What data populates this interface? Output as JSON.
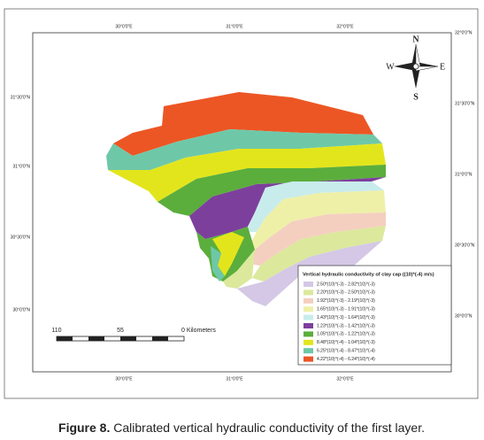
{
  "map": {
    "top_labels": [
      "30°0'0\"E",
      "31°0'0\"E",
      "32°0'0\"E"
    ],
    "bottom_labels": [
      "30°0'0\"E",
      "31°0'0\"E",
      "32°0'0\"E"
    ],
    "left_labels": [
      "31°30'0\"N",
      "31°0'0\"N",
      "30°30'0\"N",
      "30°0'0\"N"
    ],
    "right_labels": [
      "32°0'0\"N",
      "31°30'0\"N",
      "31°0'0\"N",
      "30°30'0\"N",
      "30°0'0\"N"
    ],
    "compass": {
      "n": "N",
      "e": "E",
      "s": "S",
      "w": "W"
    },
    "scale": [
      "110",
      "55",
      "0 Kilometers"
    ],
    "legend": {
      "title": "Vertical hydraulic conductivity of clay cap ((10)*(-4) m/s)",
      "items": [
        "2.50*(10)^(-3) - 2.82*(10)^(-3)",
        "2.20*(10)^(-3) - 2.50*(10)^(-3)",
        "1.92*(10)^(-3) - 2.19*(10)^(-3)",
        "1.65*(10)^(-3) - 1.91*(10)^(-3)",
        "1.43*(10)^(-3) - 1.64*(10)^(-3)",
        "1.23*(10)^(-3) - 1.42*(10)^(-3)",
        "1.05*(10)^(-3) - 1.22*(10)^(-3)",
        "8.48*(10)^(-4) - 1.04*(10)^(-3)",
        "6.25*(10)^(-4) - 8.47*(10)^(-4)",
        "4.22*(10)^(-4) - 6.24*(10)^(-4)"
      ]
    }
  },
  "caption": {
    "label": "Figure 8.",
    "text": "Calibrated vertical hydraulic conductivity of the first layer."
  }
}
